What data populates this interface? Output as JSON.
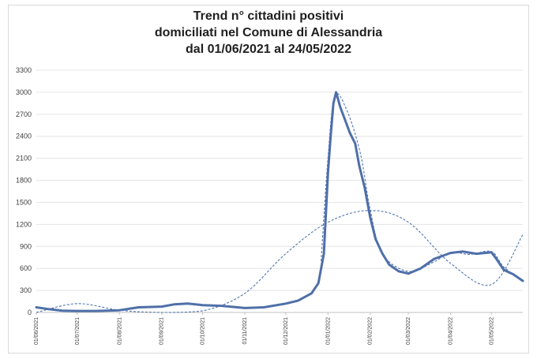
{
  "chart_data": {
    "type": "line",
    "title_lines": [
      "Trend n° cittadini positivi",
      "domiciliati nel Comune di Alessandria",
      "dal 01/06/2021 al 24/05/2022"
    ],
    "x_start": "2021-06-01",
    "x_end": "2022-05-24",
    "x_tick_labels": [
      "01/06/2021",
      "01/07/2021",
      "01/08/2021",
      "01/09/2021",
      "01/10/2021",
      "01/11/2021",
      "01/12/2021",
      "01/01/2022",
      "01/02/2022",
      "01/03/2022",
      "01/04/2022",
      "01/05/2022"
    ],
    "y_tick_labels": [
      "0",
      "300",
      "600",
      "900",
      "1200",
      "1500",
      "1800",
      "2100",
      "2400",
      "2700",
      "3000",
      "3300"
    ],
    "ylim": [
      0,
      3300
    ],
    "grid": "horizontal",
    "colors": {
      "series": "#4f6fa8",
      "trend": "#4f74b0",
      "grid": "#e4e4e4"
    },
    "series": [
      {
        "style": "solid",
        "x": [
          "2021-06-01",
          "2021-06-10",
          "2021-06-20",
          "2021-07-01",
          "2021-07-15",
          "2021-08-01",
          "2021-08-15",
          "2021-09-01",
          "2021-09-10",
          "2021-09-20",
          "2021-10-01",
          "2021-10-15",
          "2021-11-01",
          "2021-11-15",
          "2021-12-01",
          "2021-12-10",
          "2021-12-20",
          "2021-12-25",
          "2021-12-29",
          "2022-01-01",
          "2022-01-03",
          "2022-01-05",
          "2022-01-07",
          "2022-01-10",
          "2022-01-13",
          "2022-01-17",
          "2022-01-21",
          "2022-01-24",
          "2022-01-28",
          "2022-02-01",
          "2022-02-05",
          "2022-02-10",
          "2022-02-15",
          "2022-02-22",
          "2022-03-01",
          "2022-03-10",
          "2022-03-20",
          "2022-04-01",
          "2022-04-10",
          "2022-04-20",
          "2022-05-01",
          "2022-05-05",
          "2022-05-10",
          "2022-05-17",
          "2022-05-24"
        ],
        "y": [
          70,
          45,
          25,
          20,
          20,
          30,
          70,
          80,
          110,
          120,
          100,
          90,
          60,
          70,
          120,
          160,
          260,
          400,
          800,
          1900,
          2400,
          2850,
          3000,
          2800,
          2650,
          2450,
          2300,
          2000,
          1700,
          1300,
          1000,
          800,
          650,
          560,
          530,
          600,
          730,
          810,
          830,
          800,
          820,
          720,
          580,
          520,
          430
        ]
      },
      {
        "style": "dashed",
        "x": [
          "2021-06-01",
          "2021-07-01",
          "2021-08-01",
          "2021-09-01",
          "2021-10-01",
          "2021-11-01",
          "2021-12-01",
          "2022-01-01",
          "2022-02-01",
          "2022-03-01",
          "2022-04-01",
          "2022-05-01",
          "2022-05-24"
        ],
        "y": [
          0,
          120,
          30,
          -60,
          20,
          260,
          800,
          1230,
          1390,
          1230,
          670,
          380,
          1060
        ]
      },
      {
        "style": "dashed",
        "x": [
          "2021-12-27",
          "2022-01-01",
          "2022-01-06",
          "2022-01-15",
          "2022-01-25",
          "2022-02-01",
          "2022-02-10",
          "2022-03-01",
          "2022-03-20",
          "2022-04-01",
          "2022-04-15",
          "2022-05-01",
          "2022-05-10",
          "2022-05-24"
        ],
        "y": [
          700,
          2100,
          2950,
          2750,
          2150,
          1400,
          800,
          560,
          690,
          820,
          790,
          830,
          620,
          430
        ]
      }
    ]
  }
}
